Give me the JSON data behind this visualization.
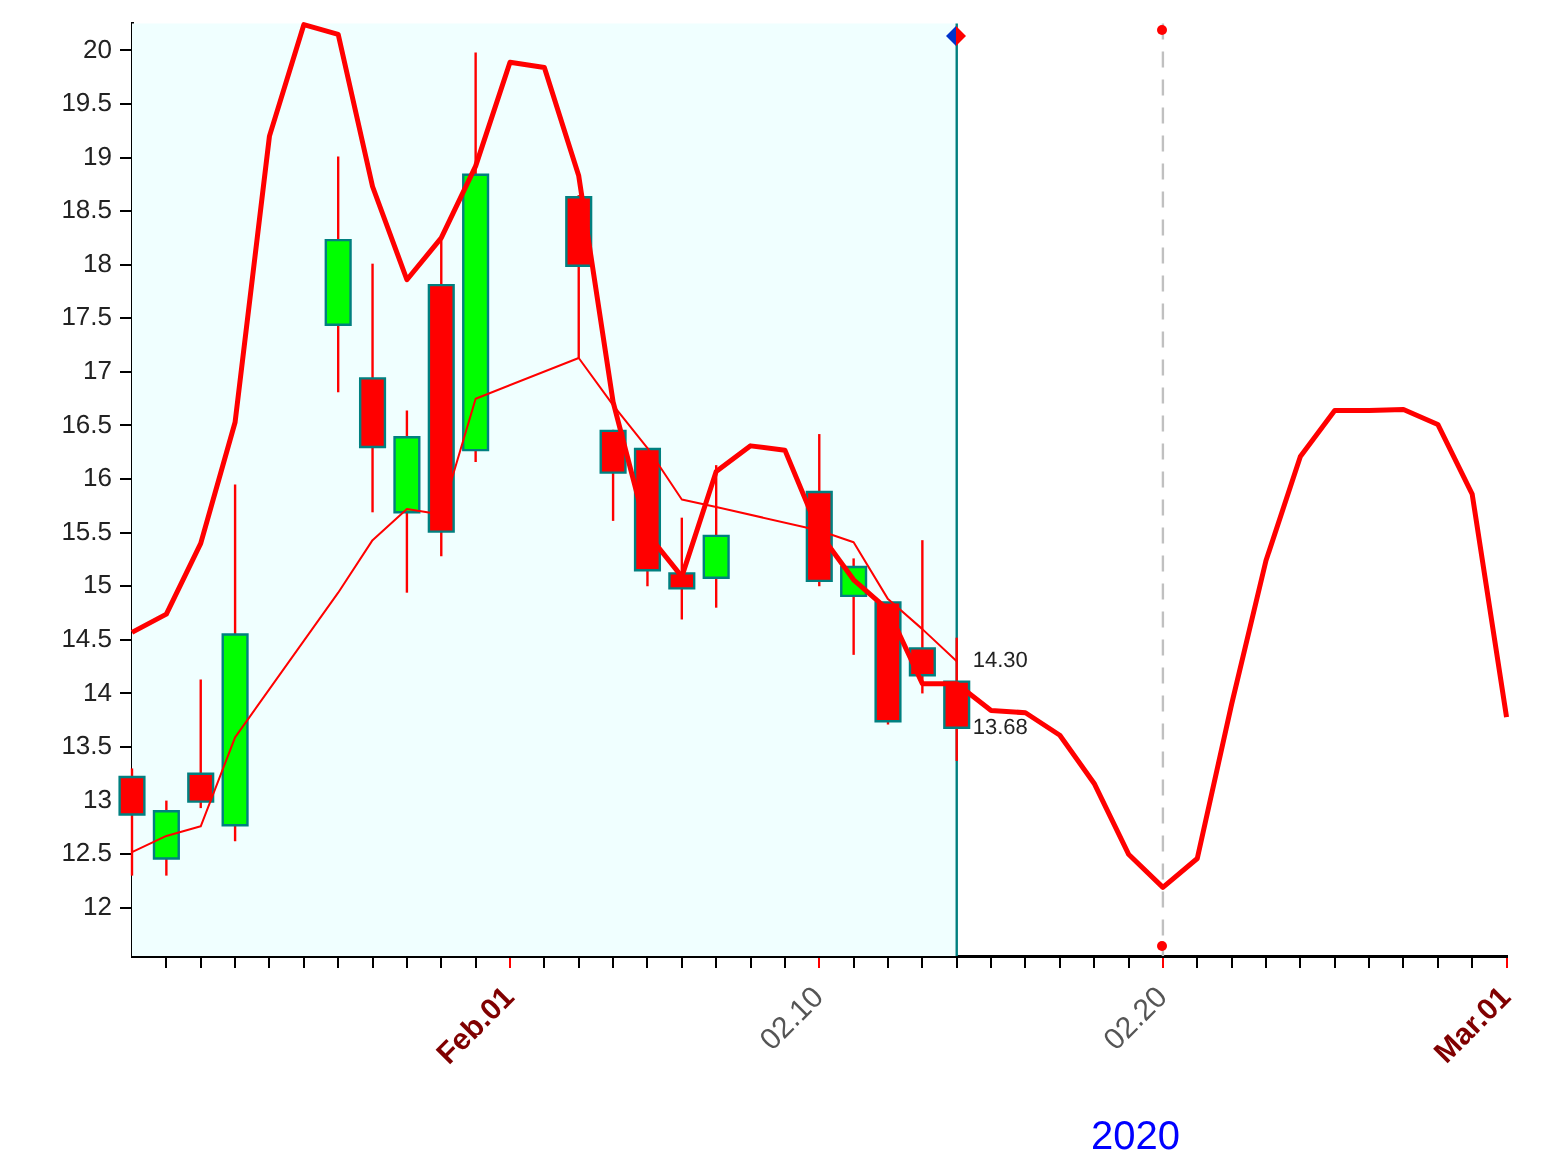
{
  "chart_data": {
    "type": "candlestick",
    "xlabel": "2020",
    "xlim": [
      "2020-01-21",
      "2020-03-01"
    ],
    "xticks": [
      {
        "value": "2020-01-22",
        "label": null
      },
      {
        "value": "2020-01-23",
        "label": null
      },
      {
        "value": "2020-01-24",
        "label": null
      },
      {
        "value": "2020-01-25",
        "label": null
      },
      {
        "value": "2020-01-26",
        "label": null
      },
      {
        "value": "2020-01-27",
        "label": null
      },
      {
        "value": "2020-01-28",
        "label": null
      },
      {
        "value": "2020-01-29",
        "label": null
      },
      {
        "value": "2020-01-30",
        "label": null
      },
      {
        "value": "2020-01-31",
        "label": null
      },
      {
        "value": "2020-02-01",
        "label": "Feb.01"
      },
      {
        "value": "2020-02-02",
        "label": null
      },
      {
        "value": "2020-02-03",
        "label": null
      },
      {
        "value": "2020-02-04",
        "label": null
      },
      {
        "value": "2020-02-05",
        "label": null
      },
      {
        "value": "2020-02-06",
        "label": null
      },
      {
        "value": "2020-02-07",
        "label": null
      },
      {
        "value": "2020-02-08",
        "label": null
      },
      {
        "value": "2020-02-09",
        "label": null
      },
      {
        "value": "2020-02-10",
        "label": "02.10"
      },
      {
        "value": "2020-02-11",
        "label": null
      },
      {
        "value": "2020-02-12",
        "label": null
      },
      {
        "value": "2020-02-13",
        "label": null
      },
      {
        "value": "2020-02-14",
        "label": null
      },
      {
        "value": "2020-02-15",
        "label": null
      },
      {
        "value": "2020-02-16",
        "label": null
      },
      {
        "value": "2020-02-17",
        "label": null
      },
      {
        "value": "2020-02-18",
        "label": null
      },
      {
        "value": "2020-02-19",
        "label": null
      },
      {
        "value": "2020-02-20",
        "label": "02.20"
      },
      {
        "value": "2020-02-21",
        "label": null
      },
      {
        "value": "2020-02-22",
        "label": null
      },
      {
        "value": "2020-02-23",
        "label": null
      },
      {
        "value": "2020-02-24",
        "label": null
      },
      {
        "value": "2020-02-25",
        "label": null
      },
      {
        "value": "2020-02-26",
        "label": null
      },
      {
        "value": "2020-02-27",
        "label": null
      },
      {
        "value": "2020-02-28",
        "label": null
      },
      {
        "value": "2020-02-29",
        "label": null
      },
      {
        "value": "2020-03-01",
        "label": "Mar.01"
      }
    ],
    "ylim": [
      11.55,
      20.25
    ],
    "yticks": [
      12,
      12.5,
      13,
      13.5,
      14,
      14.5,
      15,
      15.5,
      16,
      16.5,
      17,
      17.5,
      18,
      18.5,
      19,
      19.5,
      20
    ],
    "x": [
      "2020-01-21",
      "2020-01-22",
      "2020-01-23",
      "2020-01-24",
      "2020-01-27",
      "2020-01-28",
      "2020-01-29",
      "2020-01-30",
      "2020-01-31",
      "2020-02-03",
      "2020-02-04",
      "2020-02-05",
      "2020-02-06",
      "2020-02-07",
      "2020-02-10",
      "2020-02-11",
      "2020-02-12",
      "2020-02-13",
      "2020-02-14"
    ],
    "ohlc": [
      [
        13.22,
        13.3,
        12.3,
        12.87
      ],
      [
        12.46,
        13.0,
        12.3,
        12.9
      ],
      [
        13.25,
        14.13,
        12.93,
        12.99
      ],
      [
        12.77,
        15.95,
        12.62,
        14.55
      ],
      [
        17.44,
        19.01,
        16.81,
        18.23
      ],
      [
        16.94,
        18.01,
        15.69,
        16.3
      ],
      [
        15.69,
        16.64,
        14.94,
        16.39
      ],
      [
        17.81,
        18.27,
        15.28,
        15.51
      ],
      [
        16.27,
        19.98,
        16.16,
        18.84
      ],
      [
        18.63,
        18.65,
        17.13,
        17.99
      ],
      [
        16.45,
        16.46,
        15.61,
        16.06
      ],
      [
        16.28,
        16.28,
        15.0,
        15.15
      ],
      [
        15.12,
        15.64,
        14.69,
        14.98
      ],
      [
        15.08,
        16.13,
        14.8,
        15.47
      ],
      [
        15.88,
        16.42,
        15.0,
        15.05
      ],
      [
        14.91,
        15.26,
        14.36,
        15.18
      ],
      [
        14.85,
        14.85,
        13.71,
        13.74
      ],
      [
        14.42,
        15.43,
        14.0,
        14.17
      ],
      [
        14.11,
        14.52,
        13.37,
        13.68
      ]
    ],
    "colors": [
      "#ff0000",
      "#00ff00",
      "#ff0000",
      "#00ff00",
      "#00ff00",
      "#ff0000",
      "#00ff00",
      "#ff0000",
      "#00ff00",
      "#ff0000",
      "#ff0000",
      "#ff0000",
      "#ff0000",
      "#00ff00",
      "#ff0000",
      "#00ff00",
      "#ff0000",
      "#ff0000",
      "#ff0000"
    ],
    "series": [
      {
        "type": "line",
        "color": "#ff0000",
        "x": [
          "2020-01-21",
          "2020-01-22",
          "2020-01-23",
          "2020-01-24",
          "2020-01-25",
          "2020-01-26",
          "2020-01-27",
          "2020-01-28",
          "2020-01-29",
          "2020-01-30",
          "2020-01-31",
          "2020-02-01",
          "2020-02-02",
          "2020-02-03",
          "2020-02-04",
          "2020-02-05",
          "2020-02-06",
          "2020-02-07",
          "2020-02-08",
          "2020-02-09",
          "2020-02-10",
          "2020-02-11",
          "2020-02-12",
          "2020-02-13",
          "2020-02-14",
          "2020-02-15",
          "2020-02-16",
          "2020-02-17",
          "2020-02-18",
          "2020-02-19",
          "2020-02-20",
          "2020-02-21",
          "2020-02-22",
          "2020-02-23",
          "2020-02-24",
          "2020-02-25",
          "2020-02-26",
          "2020-02-27",
          "2020-02-28",
          "2020-02-29",
          "2020-03-01"
        ],
        "values": [
          14.57,
          14.74,
          15.4,
          16.53,
          19.2,
          20.24,
          20.15,
          18.73,
          17.86,
          18.25,
          18.92,
          19.89,
          19.84,
          18.83,
          16.72,
          15.49,
          15.09,
          16.07,
          16.31,
          16.27,
          15.5,
          15.06,
          14.78,
          14.09,
          14.09,
          13.84,
          13.82,
          13.61,
          13.16,
          12.5,
          12.19,
          12.46,
          13.9,
          15.24,
          16.21,
          16.64,
          16.64,
          16.65,
          16.51,
          15.86,
          13.78
        ]
      },
      {
        "type": "line",
        "color": "#ff0000",
        "x": [
          "2020-01-21",
          "2020-01-22",
          "2020-01-23",
          "2020-01-24",
          "2020-01-27",
          "2020-01-28",
          "2020-01-29",
          "2020-01-30",
          "2020-01-31",
          "2020-02-03",
          "2020-02-04",
          "2020-02-05",
          "2020-02-06",
          "2020-02-07",
          "2020-02-10",
          "2020-02-11",
          "2020-02-12",
          "2020-02-13",
          "2020-02-14"
        ],
        "values": [
          12.52,
          12.67,
          12.76,
          13.59,
          14.94,
          15.43,
          15.72,
          15.67,
          16.75,
          17.13,
          16.69,
          16.29,
          15.81,
          15.74,
          15.52,
          15.41,
          14.88,
          14.6,
          14.3
        ]
      }
    ],
    "ref_lines": [
      {
        "axis": "x",
        "value": "2020-02-14",
        "color": "#008080"
      },
      {
        "axis": "x",
        "value": "2020-02-20",
        "color": "#c0c0c0",
        "line_style": "dashed"
      }
    ],
    "bands": [
      {
        "axis": "x",
        "from": "2020-01-21",
        "to": "2020-02-14",
        "color": "#f0ffff"
      }
    ],
    "annotations": [
      {
        "text": "14.30",
        "x": "2020-02-14",
        "y": 14.3
      },
      {
        "text": "13.68",
        "x": "2020-02-14",
        "y": 13.68
      }
    ]
  }
}
